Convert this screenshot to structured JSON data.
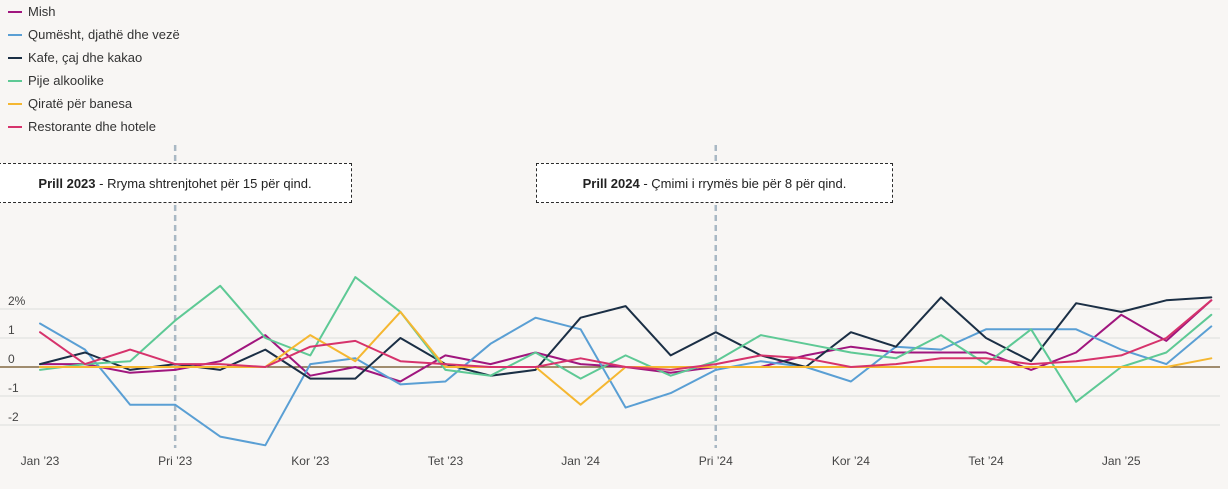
{
  "colors": {
    "background": "#f8f6f4",
    "grid": "#dddddd",
    "zero_line": "#6b4c1e",
    "guide": "#a9b8c4"
  },
  "annotations": [
    {
      "bold": "Prill 2023",
      "text": " - Rryma shtrenjtohet për 15 për qind.",
      "x": "2023-04"
    },
    {
      "bold": "Prill 2024",
      "text": " - Çmimi i rrymës bie për 8 për qind.",
      "x": "2024-04"
    }
  ],
  "chart_data": {
    "type": "line",
    "x": [
      "2023-01",
      "2023-02",
      "2023-03",
      "2023-04",
      "2023-05",
      "2023-06",
      "2023-07",
      "2023-08",
      "2023-09",
      "2023-10",
      "2023-11",
      "2023-12",
      "2024-01",
      "2024-02",
      "2024-03",
      "2024-04",
      "2024-05",
      "2024-06",
      "2024-07",
      "2024-08",
      "2024-09",
      "2024-10",
      "2024-11",
      "2024-12",
      "2025-01",
      "2025-02",
      "2025-03",
      "2025-04"
    ],
    "x_ticks": [
      {
        "x": "2023-01",
        "label": "Jan ’23"
      },
      {
        "x": "2023-04",
        "label": "Pri ’23"
      },
      {
        "x": "2023-07",
        "label": "Kor ’23"
      },
      {
        "x": "2023-10",
        "label": "Tet ’23"
      },
      {
        "x": "2024-01",
        "label": "Jan ’24"
      },
      {
        "x": "2024-04",
        "label": "Pri ’24"
      },
      {
        "x": "2024-07",
        "label": "Kor ’24"
      },
      {
        "x": "2024-10",
        "label": "Tet ’24"
      },
      {
        "x": "2025-01",
        "label": "Jan ’25"
      }
    ],
    "y_ticks": [
      {
        "value": 2,
        "label": "2%"
      },
      {
        "value": 1,
        "label": "1"
      },
      {
        "value": 0,
        "label": "0"
      },
      {
        "value": -1,
        "label": "-1"
      },
      {
        "value": -2,
        "label": "-2"
      }
    ],
    "ylim": [
      -2.9,
      3.2
    ],
    "legend_position": "top-left",
    "series": [
      {
        "name": "Mish",
        "color": "#a0167e",
        "values": [
          0.1,
          0.1,
          -0.2,
          -0.1,
          0.2,
          1.1,
          -0.3,
          0.0,
          -0.5,
          0.4,
          0.1,
          0.5,
          0.1,
          0.0,
          -0.2,
          0.0,
          0.0,
          0.4,
          0.7,
          0.5,
          0.5,
          0.5,
          -0.1,
          0.5,
          1.8,
          0.9,
          2.3,
          null
        ]
      },
      {
        "name": "Qumësht, djathë dhe vezë",
        "color": "#5a9fd4",
        "values": [
          1.5,
          0.6,
          -1.3,
          -1.3,
          -2.4,
          -2.7,
          0.1,
          0.3,
          -0.6,
          -0.5,
          0.8,
          1.7,
          1.3,
          -1.4,
          -0.9,
          -0.1,
          0.2,
          0.0,
          -0.5,
          0.7,
          0.6,
          1.3,
          1.3,
          1.3,
          0.6,
          0.1,
          1.4,
          null
        ]
      },
      {
        "name": "Kafe, çaj dhe kakao",
        "color": "#1b2f45",
        "values": [
          0.1,
          0.5,
          -0.1,
          0.1,
          -0.1,
          0.6,
          -0.4,
          -0.4,
          1.0,
          0.1,
          -0.3,
          -0.1,
          1.7,
          2.1,
          0.4,
          1.2,
          0.4,
          0.0,
          1.2,
          0.7,
          2.4,
          1.0,
          0.2,
          2.2,
          1.9,
          2.3,
          2.4,
          null
        ]
      },
      {
        "name": "Pije alkoolike",
        "color": "#5ec995",
        "values": [
          -0.1,
          0.1,
          0.2,
          1.6,
          2.8,
          1.0,
          0.4,
          3.1,
          1.9,
          -0.1,
          -0.3,
          0.5,
          -0.4,
          0.4,
          -0.3,
          0.2,
          1.1,
          0.8,
          0.5,
          0.3,
          1.1,
          0.1,
          1.3,
          -1.2,
          0.0,
          0.5,
          1.8,
          null
        ]
      },
      {
        "name": "Qiratë për banesa",
        "color": "#f5b731",
        "values": [
          0.0,
          0.0,
          0.0,
          0.0,
          0.0,
          0.0,
          1.1,
          0.2,
          1.9,
          0.0,
          0.0,
          0.0,
          -1.3,
          0.0,
          0.0,
          0.0,
          0.0,
          0.0,
          0.0,
          0.0,
          0.0,
          0.0,
          0.0,
          0.0,
          0.0,
          0.0,
          0.3,
          null
        ]
      },
      {
        "name": "Restorante dhe hotele",
        "color": "#d6336c",
        "values": [
          1.2,
          0.1,
          0.6,
          0.1,
          0.1,
          0.0,
          0.7,
          0.9,
          0.2,
          0.1,
          0.0,
          0.0,
          0.3,
          0.0,
          -0.1,
          0.1,
          0.4,
          0.3,
          0.0,
          0.1,
          0.3,
          0.3,
          0.1,
          0.2,
          0.4,
          1.0,
          2.3,
          null
        ]
      }
    ]
  }
}
